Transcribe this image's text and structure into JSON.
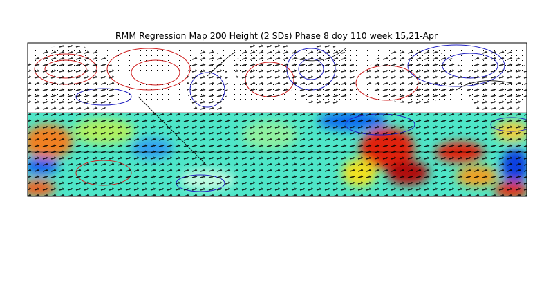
{
  "title": "RMM Regression Map 200 Height (2 SDs) Phase 8 doy 110 week 15,21-Apr"
}
